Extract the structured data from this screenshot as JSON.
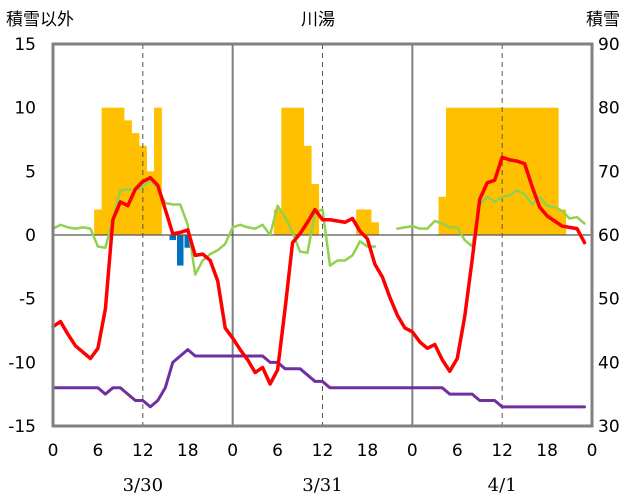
{
  "chart_data": {
    "type": "combo",
    "title": "川湯",
    "left_axis_label": "積雪以外",
    "right_axis_label": "積雪",
    "left_ylim": [
      -15,
      15
    ],
    "left_yticks": [
      "15",
      "10",
      "5",
      "0",
      "-5",
      "-10",
      "-15"
    ],
    "right_ylim": [
      30,
      90
    ],
    "right_yticks": [
      "90",
      "80",
      "70",
      "60",
      "50",
      "40",
      "30"
    ],
    "xlim": [
      0,
      72
    ],
    "xtick_labels": [
      "0",
      "6",
      "12",
      "18",
      "0",
      "6",
      "12",
      "18",
      "0",
      "6",
      "12",
      "18",
      "0"
    ],
    "date_labels": [
      "3/30",
      "3/31",
      "4/1"
    ],
    "grid": "dashed vertical at 12h, solid vertical at day boundaries, solid horizontal at 0",
    "colors": {
      "temperature": "#ff0000",
      "green_series": "#92d050",
      "snow_depth": "#7030a0",
      "sunshine_bars": "#ffc000",
      "precip_bars": "#0070c0",
      "frame": "#808080"
    },
    "sunshine_bars": {
      "hours": [
        6,
        7,
        8,
        9,
        10,
        11,
        12,
        13,
        14,
        30,
        31,
        32,
        33,
        34,
        35,
        41,
        42,
        43,
        52,
        53,
        54,
        55,
        56,
        57,
        58,
        59,
        60,
        61,
        62,
        63,
        64,
        65,
        66,
        67,
        68
      ],
      "values": [
        2,
        10,
        10,
        10,
        9,
        8,
        7,
        5,
        10,
        2,
        10,
        10,
        10,
        7,
        4,
        2,
        2,
        1,
        3,
        10,
        10,
        10,
        10,
        10,
        10,
        10,
        10,
        10,
        10,
        10,
        10,
        10,
        10,
        10,
        2
      ]
    },
    "precip_bars": {
      "hours": [
        16,
        17,
        18
      ],
      "values": [
        -0.4,
        -2.4,
        -1.0
      ]
    },
    "temperature": [
      [
        0,
        -7.2
      ],
      [
        1,
        -6.8
      ],
      [
        2,
        -7.8
      ],
      [
        3,
        -8.7
      ],
      [
        4,
        -9.2
      ],
      [
        5,
        -9.7
      ],
      [
        6,
        -8.9
      ],
      [
        7,
        -5.8
      ],
      [
        8,
        1.2
      ],
      [
        9,
        2.6
      ],
      [
        10,
        2.3
      ],
      [
        11,
        3.6
      ],
      [
        12,
        4.2
      ],
      [
        13,
        4.5
      ],
      [
        14,
        3.9
      ],
      [
        15,
        2.0
      ],
      [
        16,
        0.1
      ],
      [
        17,
        0.2
      ],
      [
        18,
        0.4
      ],
      [
        19,
        -1.6
      ],
      [
        20,
        -1.5
      ],
      [
        21,
        -2.0
      ],
      [
        22,
        -3.6
      ],
      [
        23,
        -7.3
      ],
      [
        24,
        -8.1
      ],
      [
        25,
        -9.0
      ],
      [
        26,
        -9.8
      ],
      [
        27,
        -10.8
      ],
      [
        28,
        -10.4
      ],
      [
        29,
        -11.7
      ],
      [
        30,
        -10.6
      ],
      [
        31,
        -5.8
      ],
      [
        32,
        -0.6
      ],
      [
        33,
        0.1
      ],
      [
        34,
        1.0
      ],
      [
        35,
        2.0
      ],
      [
        36,
        1.2
      ],
      [
        37,
        1.2
      ],
      [
        38,
        1.1
      ],
      [
        39,
        1.0
      ],
      [
        40,
        1.3
      ],
      [
        41,
        0.3
      ],
      [
        42,
        -0.3
      ],
      [
        43,
        -2.3
      ],
      [
        44,
        -3.3
      ],
      [
        45,
        -4.9
      ],
      [
        46,
        -6.3
      ],
      [
        47,
        -7.3
      ],
      [
        48,
        -7.6
      ],
      [
        49,
        -8.4
      ],
      [
        50,
        -8.9
      ],
      [
        51,
        -8.6
      ],
      [
        52,
        -9.8
      ],
      [
        53,
        -10.7
      ],
      [
        54,
        -9.7
      ],
      [
        55,
        -6.4
      ],
      [
        56,
        -1.9
      ],
      [
        57,
        2.8
      ],
      [
        58,
        4.1
      ],
      [
        59,
        4.3
      ],
      [
        60,
        6.1
      ],
      [
        61,
        5.9
      ],
      [
        62,
        5.8
      ],
      [
        63,
        5.6
      ],
      [
        64,
        3.8
      ],
      [
        65,
        2.2
      ],
      [
        66,
        1.5
      ],
      [
        67,
        1.1
      ],
      [
        68,
        0.7
      ],
      [
        69,
        0.6
      ],
      [
        70,
        0.5
      ],
      [
        71,
        -0.6
      ]
    ],
    "green_series": [
      [
        0,
        0.5
      ],
      [
        1,
        0.8
      ],
      [
        2,
        0.6
      ],
      [
        3,
        0.5
      ],
      [
        4,
        0.6
      ],
      [
        5,
        0.5
      ],
      [
        6,
        -0.9
      ],
      [
        7,
        -1.0
      ],
      [
        8,
        1.2
      ],
      [
        9,
        3.5
      ],
      [
        10,
        3.6
      ],
      [
        11,
        3.5
      ],
      [
        12,
        3.8
      ],
      [
        13,
        4.3
      ],
      [
        14,
        3.7
      ],
      [
        15,
        2.5
      ],
      [
        16,
        2.4
      ],
      [
        17,
        2.4
      ],
      [
        18,
        0.8
      ],
      [
        19,
        -3.1
      ],
      [
        20,
        -2.0
      ],
      [
        21,
        -1.5
      ],
      [
        22,
        -1.2
      ],
      [
        23,
        -0.7
      ],
      [
        24,
        0.6
      ],
      [
        25,
        0.8
      ],
      [
        26,
        0.6
      ],
      [
        27,
        0.5
      ],
      [
        28,
        0.8
      ],
      [
        29,
        0.0
      ],
      [
        30,
        2.3
      ],
      [
        31,
        1.4
      ],
      [
        32,
        0.2
      ],
      [
        33,
        -1.3
      ],
      [
        34,
        -1.4
      ],
      [
        35,
        1.8
      ],
      [
        36,
        2.0
      ],
      [
        37,
        -2.4
      ],
      [
        38,
        -2.0
      ],
      [
        39,
        -2.0
      ],
      [
        40,
        -1.6
      ],
      [
        41,
        -0.5
      ],
      [
        42,
        -0.9
      ],
      [
        43,
        -0.9
      ],
      null,
      [
        46,
        0.5
      ],
      [
        47,
        0.6
      ],
      [
        48,
        0.7
      ],
      [
        49,
        0.5
      ],
      [
        50,
        0.5
      ],
      [
        51,
        1.1
      ],
      [
        52,
        0.9
      ],
      [
        53,
        0.6
      ],
      [
        54,
        0.6
      ],
      [
        55,
        -0.4
      ],
      [
        56,
        -0.9
      ],
      [
        57,
        2.4
      ],
      [
        58,
        3.0
      ],
      [
        59,
        2.6
      ],
      [
        60,
        3.0
      ],
      [
        61,
        3.1
      ],
      [
        62,
        3.5
      ],
      [
        63,
        3.2
      ],
      [
        64,
        2.4
      ],
      [
        65,
        3.0
      ],
      [
        66,
        2.3
      ],
      [
        67,
        2.2
      ],
      [
        68,
        1.9
      ],
      [
        69,
        1.3
      ],
      [
        70,
        1.4
      ],
      [
        71,
        0.9
      ]
    ],
    "snow_depth": [
      [
        0,
        36
      ],
      [
        4,
        36
      ],
      [
        5,
        36
      ],
      [
        6,
        36
      ],
      [
        7,
        35
      ],
      [
        8,
        36
      ],
      [
        9,
        36
      ],
      [
        10,
        35
      ],
      [
        11,
        34
      ],
      [
        12,
        34
      ],
      [
        13,
        33
      ],
      [
        14,
        34
      ],
      [
        15,
        36
      ],
      [
        16,
        40
      ],
      [
        17,
        41
      ],
      [
        18,
        42
      ],
      [
        19,
        41
      ],
      [
        20,
        41
      ],
      [
        28,
        41
      ],
      [
        29,
        40
      ],
      [
        30,
        40
      ],
      [
        31,
        39
      ],
      [
        32,
        39
      ],
      [
        33,
        39
      ],
      [
        34,
        38
      ],
      [
        35,
        37
      ],
      [
        36,
        37
      ],
      [
        37,
        36
      ],
      [
        38,
        36
      ],
      [
        52,
        36
      ],
      [
        53,
        35
      ],
      [
        54,
        35
      ],
      [
        55,
        35
      ],
      [
        56,
        35
      ],
      [
        57,
        34
      ],
      [
        58,
        34
      ],
      [
        59,
        34
      ],
      [
        60,
        33
      ],
      [
        61,
        33
      ],
      [
        62,
        33
      ],
      [
        71,
        33
      ]
    ]
  }
}
